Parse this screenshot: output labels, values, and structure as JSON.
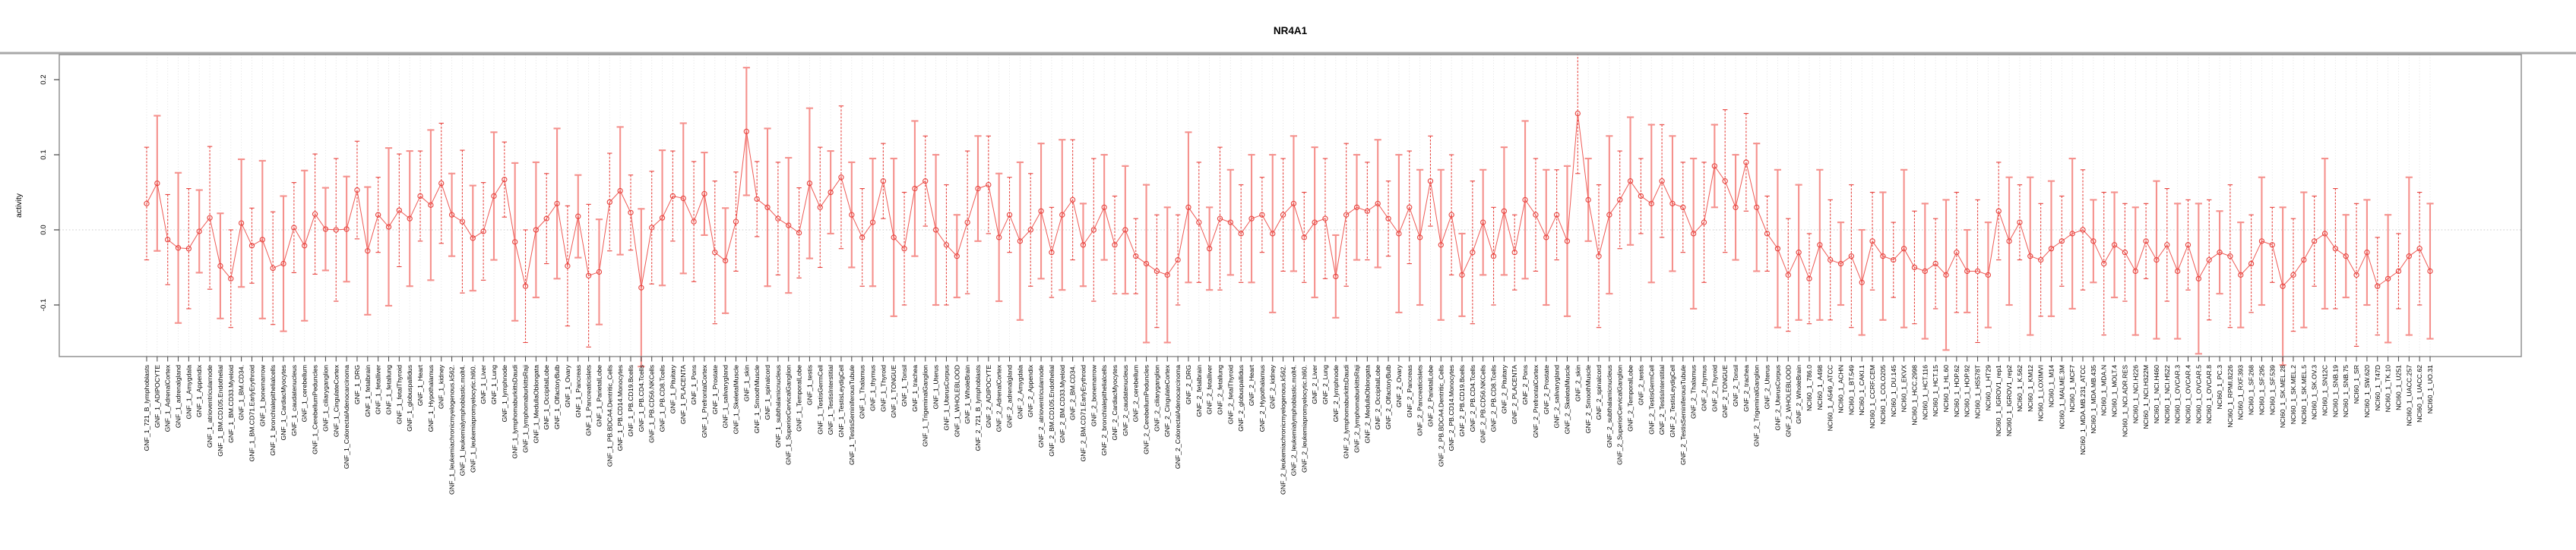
{
  "title": "NR4A1",
  "y_axis": {
    "label": "activity",
    "ticks": [
      -0.1,
      0.0,
      0.1,
      0.2
    ],
    "tick_labels": [
      "-0.1",
      "0.0",
      "0.1",
      "0.2"
    ]
  },
  "colors": {
    "point": "#e8433e",
    "series_line": "#ee5a55",
    "errorbar_dark": "#e8433e",
    "errorbar_light": "#f5918d",
    "grid": "#dedede",
    "zero_line": "#c9c9c9",
    "box": "#8a8a8a",
    "tick": "#444444"
  },
  "chart_data": {
    "type": "line",
    "title": "NR4A1",
    "xlabel": "",
    "ylabel": "activity",
    "ylim": [
      -0.169,
      0.233
    ],
    "grid": "vertical-dotted",
    "legend": "none",
    "marker": "open-circle",
    "error_bars": true,
    "categories": [
      "GNF_1_721_B_lymphoblasts",
      "GNF_1_ADIPOCYTE",
      "GNF_1_AdrenalCortex",
      "GNF_1_adrenalgland",
      "GNF_1_Amygdala",
      "GNF_1_Appendix",
      "GNF_1_atrioventricularnode",
      "GNF_1_BM.CD105.Endothelial",
      "GNF_1_BM.CD33.Myeloid",
      "GNF_1_BM.CD34.",
      "GNF_1_BM.CD71.EarlyErythroid",
      "GNF_1_bonemarrow",
      "GNF_1_bronchialepithelialcells",
      "GNF_1_CardiacMyocytes",
      "GNF_1_caudatenucleus",
      "GNF_1_cerebellum",
      "GNF_1_CerebellumPeduncles",
      "GNF_1_ciliaryganglion",
      "GNF_1_CingulateCortex",
      "GNF_1_ColorectalAdenocarcinoma",
      "GNF_1_DRG",
      "GNF_1_fetalbrain",
      "GNF_1_fetalliver",
      "GNF_1_fetallung",
      "GNF_1_fetalThyroid",
      "GNF_1_globuspallidus",
      "GNF_1_Heart",
      "GNF_1_Hypothalamus",
      "GNF_1_kidney",
      "GNF_1_leukemiachronicmyelogenous.k562.",
      "GNF_1_leukemialymphoblastic.molt4.",
      "GNF_1_leukemiapromyelocytic.hl60.",
      "GNF_1_Liver",
      "GNF_1_Lung",
      "GNF_1_lymphnode",
      "GNF_1_lymphomaburkittsDaudi",
      "GNF_1_lymphomaburkittsRaji",
      "GNF_1_MedullaOblongata",
      "GNF_1_OccipitalLobe",
      "GNF_1_OlfactoryBulb",
      "GNF_1_Ovary",
      "GNF_1_Pancreas",
      "GNF_1_Pancreaticislets",
      "GNF_1_ParietalLobe",
      "GNF_1_PB.BDCA4.Dentritic_Cells",
      "GNF_1_PB.CD14.Monocytes",
      "GNF_1_PB.CD19.Bcells",
      "GNF_1_PB.CD4.Tcells",
      "GNF_1_PB.CD56.NKCells",
      "GNF_1_PB.CD8.Tcells",
      "GNF_1_Pituitary",
      "GNF_1_PLACENTA",
      "GNF_1_Pons",
      "GNF_1_PrefrontalCortex",
      "GNF_1_Prostate",
      "GNF_1_salivarygland",
      "GNF_1_SkeletalMuscle",
      "GNF_1_skin",
      "GNF_1_SmoothMuscle",
      "GNF_1_spinalcord",
      "GNF_1_subthalamicnucleus",
      "GNF_1_SuperiorCervicalGanglion",
      "GNF_1_TemporalLobe",
      "GNF_1_testis",
      "GNF_1_TestisGermCell",
      "GNF_1_TestisInterstitial",
      "GNF_1_TestisLeydigCell",
      "GNF_1_TestisSeminiferousTubule",
      "GNF_1_Thalamus",
      "GNF_1_thymus",
      "GNF_1_Thyroid",
      "GNF_1_TONGUE",
      "GNF_1_Tonsil",
      "GNF_1_trachea",
      "GNF_1_TrigeminalGanglion",
      "GNF_1_Uterus",
      "GNF_1_UterusCorpus",
      "GNF_1_WHOLEBLOOD",
      "GNF_1_WholeBrain",
      "GNF_2_721_B_lymphoblasts",
      "GNF_2_ADIPOCYTE",
      "GNF_2_AdrenalCortex",
      "GNF_2_adrenalgland",
      "GNF_2_Amygdala",
      "GNF_2_Appendix",
      "GNF_2_atrioventricularnode",
      "GNF_2_BM.CD105.Endothelial",
      "GNF_2_BM.CD33.Myeloid",
      "GNF_2_BM.CD34.",
      "GNF_2_BM.CD71.EarlyErythroid",
      "GNF_2_bonemarrow",
      "GNF_2_bronchialepithelialcells",
      "GNF_2_CardiacMyocytes",
      "GNF_2_caudatenucleus",
      "GNF_2_cerebellum",
      "GNF_2_CerebellumPeduncles",
      "GNF_2_ciliaryganglion",
      "GNF_2_CingulateCortex",
      "GNF_2_ColorectalAdenocarcinoma",
      "GNF_2_DRG",
      "GNF_2_fetalbrain",
      "GNF_2_fetalliver",
      "GNF_2_fetallung",
      "GNF_2_fetalThyroid",
      "GNF_2_globuspallidus",
      "GNF_2_Heart",
      "GNF_2_Hypothalamus",
      "GNF_2_kidney",
      "GNF_2_leukemiachronicmyelogenous.k562.",
      "GNF_2_leukemialymphoblastic.molt4.",
      "GNF_2_leukemiapromyelocytic.hl60.",
      "GNF_2_Liver",
      "GNF_2_Lung",
      "GNF_2_lymphnode",
      "GNF_2_lymphomaburkittsDaudi",
      "GNF_2_lymphomaburkittsRaji",
      "GNF_2_MedullaOblongata",
      "GNF_2_OccipitalLobe",
      "GNF_2_OlfactoryBulb",
      "GNF_2_Ovary",
      "GNF_2_Pancreas",
      "GNF_2_Pancreaticislets",
      "GNF_2_ParietalLobe",
      "GNF_2_PB.BDCA4.Dentritic_Cells",
      "GNF_2_PB.CD14.Monocytes",
      "GNF_2_PB.CD19.Bcells",
      "GNF_2_PB.CD4.Tcells",
      "GNF_2_PB.CD56.NKCells",
      "GNF_2_PB.CD8.Tcells",
      "GNF_2_Pituitary",
      "GNF_2_PLACENTA",
      "GNF_2_Pons",
      "GNF_2_PrefrontalCortex",
      "GNF_2_Prostate",
      "GNF_2_salivarygland",
      "GNF_2_SkeletalMuscle",
      "GNF_2_skin",
      "GNF_2_SmoothMuscle",
      "GNF_2_spinalcord",
      "GNF_2_subthalamicnucleus",
      "GNF_2_SuperiorCervicalGanglion",
      "GNF_2_TemporalLobe",
      "GNF_2_testis",
      "GNF_2_TestisGermCell",
      "GNF_2_TestisInterstitial",
      "GNF_2_TestisLeydigCell",
      "GNF_2_TestisSeminiferousTubule",
      "GNF_2_Thalamus",
      "GNF_2_thymus",
      "GNF_2_Thyroid",
      "GNF_2_TONGUE",
      "GNF_2_Tonsil",
      "GNF_2_trachea",
      "GNF_2_TrigeminalGanglion",
      "GNF_2_Uterus",
      "GNF_2_UterusCorpus",
      "GNF_2_WHOLEBLOOD",
      "GNF_2_WholeBrain",
      "NCI60_1_786.0",
      "NCI60_1_A498",
      "NCI60_1_A549_ATCC",
      "NCI60_1_ACHN",
      "NCI60_1_BT.549",
      "NCI60_1_CAKI.1",
      "NCI60_1_CCRF.CEM",
      "NCI60_1_COLO205",
      "NCI60_1_DU.145",
      "NCI60_1_EKVX",
      "NCI60_1_HCC.2998",
      "NCI60_1_HCT.116",
      "NCI60_1_HCT.15",
      "NCI60_1_HL.60",
      "NCI60_1_HOP.62",
      "NCI60_1_HOP.92",
      "NCI60_1_HS578T",
      "NCI60_1_HT29",
      "NCI60_1_IGROV1_rep1",
      "NCI60_1_IGROV1_rep2",
      "NCI60_1_K.562",
      "NCI60_1_KM12",
      "NCI60_1_LOXIMVI",
      "NCI60_1_M14",
      "NCI60_1_MALME.3M",
      "NCI60_1_MCF7",
      "NCI60_1_MDA.MB.231_ATCC",
      "NCI60_1_MDA.MB.435",
      "NCI60_1_MDA.N",
      "NCI60_1_MOLT.4",
      "NCI60_1_NCI.ADR.RES",
      "NCI60_1_NCI.H226",
      "NCI60_1_NCI.H322M",
      "NCI60_1_NCI.H460",
      "NCI60_1_NCI.H522",
      "NCI60_1_OVCAR.3",
      "NCI60_1_OVCAR.4",
      "NCI60_1_OVCAR.5",
      "NCI60_1_OVCAR.8",
      "NCI60_1_PC.3",
      "NCI60_1_RPMI.8226",
      "NCI60_1_RXF.393",
      "NCI60_1_SF.268",
      "NCI60_1_SF.295",
      "NCI60_1_SF.539",
      "NCI60_1_SK.MEL.28",
      "NCI60_1_SK.MEL.2",
      "NCI60_1_SK.MEL.5",
      "NCI60_1_SK.OV.3",
      "NCI60_1_SN12C",
      "NCI60_1_SNB.19",
      "NCI60_1_SNB.75",
      "NCI60_1_SR",
      "NCI60_1_SW.620",
      "NCI60_1_T47D",
      "NCI60_1_TK.10",
      "NCI60_1_U251",
      "NCI60_1_UACC.257",
      "NCI60_1_UACC.62",
      "NCI60_1_UO.31"
    ],
    "series": [
      {
        "name": "NR4A1 activity",
        "values": [
          0.035,
          0.062,
          -0.013,
          -0.024,
          -0.025,
          -0.002,
          0.016,
          -0.048,
          -0.065,
          0.009,
          -0.021,
          -0.013,
          -0.051,
          -0.045,
          0.003,
          -0.021,
          0.021,
          0.001,
          0.0,
          0.001,
          0.053,
          -0.028,
          0.02,
          0.004,
          0.026,
          0.015,
          0.045,
          0.033,
          0.062,
          0.02,
          0.011,
          -0.011,
          -0.002,
          0.045,
          0.067,
          -0.016,
          -0.075,
          0.0,
          0.015,
          0.035,
          -0.048,
          0.018,
          -0.061,
          -0.056,
          0.037,
          0.052,
          0.023,
          -0.077,
          0.003,
          0.016,
          0.045,
          0.042,
          0.011,
          0.048,
          -0.03,
          -0.041,
          0.011,
          0.131,
          0.041,
          0.03,
          0.015,
          0.006,
          -0.004,
          0.062,
          0.03,
          0.05,
          0.07,
          0.02,
          -0.01,
          0.01,
          0.065,
          -0.01,
          -0.025,
          0.055,
          0.065,
          0.0,
          -0.02,
          -0.035,
          0.01,
          0.055,
          0.06,
          -0.01,
          0.02,
          -0.015,
          0.0,
          0.025,
          -0.03,
          0.02,
          0.04,
          -0.02,
          0.0,
          0.03,
          -0.02,
          0.0,
          -0.035,
          -0.045,
          -0.055,
          -0.06,
          -0.04,
          0.03,
          0.01,
          -0.025,
          0.015,
          0.01,
          -0.005,
          0.015,
          0.02,
          -0.005,
          0.02,
          0.035,
          -0.01,
          0.01,
          0.015,
          -0.062,
          0.02,
          0.03,
          0.025,
          0.035,
          0.015,
          -0.005,
          0.03,
          -0.01,
          0.065,
          -0.02,
          0.02,
          -0.06,
          -0.03,
          0.01,
          -0.035,
          0.025,
          -0.03,
          0.04,
          0.02,
          -0.01,
          0.02,
          -0.015,
          0.155,
          0.04,
          -0.035,
          0.02,
          0.04,
          0.065,
          0.045,
          0.035,
          0.065,
          0.035,
          0.03,
          -0.005,
          0.01,
          0.085,
          0.065,
          0.03,
          0.09,
          0.03,
          -0.005,
          -0.025,
          -0.06,
          -0.03,
          -0.065,
          -0.02,
          -0.04,
          -0.045,
          -0.035,
          -0.07,
          -0.015,
          -0.035,
          -0.04,
          -0.025,
          -0.05,
          -0.055,
          -0.045,
          -0.06,
          -0.03,
          -0.055,
          -0.055,
          -0.06,
          0.025,
          -0.015,
          0.01,
          -0.035,
          -0.04,
          -0.025,
          -0.015,
          -0.005,
          0.0,
          -0.015,
          -0.045,
          -0.02,
          -0.03,
          -0.055,
          -0.015,
          -0.04,
          -0.02,
          -0.055,
          -0.02,
          -0.065,
          -0.04,
          -0.03,
          -0.035,
          -0.06,
          -0.045,
          -0.015,
          -0.02,
          -0.075,
          -0.06,
          -0.04,
          -0.015,
          -0.005,
          -0.025,
          -0.035,
          -0.06,
          -0.03,
          -0.075,
          -0.065,
          -0.055,
          -0.035,
          -0.025,
          -0.055
        ],
        "err": [
          0.075,
          0.09,
          0.06,
          0.1,
          0.08,
          0.055,
          0.095,
          0.07,
          0.065,
          0.085,
          0.05,
          0.105,
          0.075,
          0.09,
          0.06,
          0.1,
          0.08,
          0.055,
          0.095,
          0.07,
          0.065,
          0.085,
          0.05,
          0.105,
          0.075,
          0.09,
          0.06,
          0.1,
          0.08,
          0.055,
          0.095,
          0.07,
          0.065,
          0.085,
          0.05,
          0.105,
          0.075,
          0.09,
          0.06,
          0.1,
          0.08,
          0.055,
          0.095,
          0.07,
          0.065,
          0.085,
          0.05,
          0.105,
          0.075,
          0.09,
          0.06,
          0.1,
          0.08,
          0.055,
          0.095,
          0.07,
          0.066,
          0.085,
          0.05,
          0.105,
          0.075,
          0.09,
          0.06,
          0.1,
          0.08,
          0.055,
          0.095,
          0.07,
          0.065,
          0.085,
          0.05,
          0.105,
          0.075,
          0.09,
          0.06,
          0.1,
          0.08,
          0.055,
          0.095,
          0.07,
          0.065,
          0.085,
          0.05,
          0.105,
          0.075,
          0.09,
          0.06,
          0.1,
          0.08,
          0.055,
          0.095,
          0.07,
          0.065,
          0.085,
          0.05,
          0.105,
          0.075,
          0.09,
          0.06,
          0.1,
          0.08,
          0.055,
          0.095,
          0.07,
          0.065,
          0.085,
          0.05,
          0.105,
          0.075,
          0.09,
          0.06,
          0.1,
          0.08,
          0.055,
          0.095,
          0.07,
          0.065,
          0.085,
          0.05,
          0.105,
          0.075,
          0.09,
          0.06,
          0.1,
          0.08,
          0.055,
          0.095,
          0.07,
          0.065,
          0.085,
          0.05,
          0.105,
          0.075,
          0.09,
          0.06,
          0.1,
          0.08,
          0.055,
          0.095,
          0.105,
          0.065,
          0.085,
          0.05,
          0.105,
          0.075,
          0.09,
          0.06,
          0.1,
          0.08,
          0.055,
          0.095,
          0.07,
          0.065,
          0.085,
          0.05,
          0.105,
          0.075,
          0.09,
          0.06,
          0.1,
          0.08,
          0.055,
          0.095,
          0.07,
          0.065,
          0.085,
          0.05,
          0.105,
          0.075,
          0.09,
          0.06,
          0.1,
          0.08,
          0.055,
          0.095,
          0.07,
          0.065,
          0.085,
          0.05,
          0.105,
          0.075,
          0.09,
          0.06,
          0.1,
          0.08,
          0.055,
          0.095,
          0.07,
          0.065,
          0.085,
          0.05,
          0.105,
          0.075,
          0.09,
          0.06,
          0.1,
          0.08,
          0.055,
          0.095,
          0.07,
          0.065,
          0.085,
          0.05,
          0.105,
          0.075,
          0.09,
          0.06,
          0.1,
          0.08,
          0.055,
          0.095,
          0.07,
          0.065,
          0.085,
          0.05,
          0.105,
          0.075,
          0.09
        ]
      }
    ]
  }
}
